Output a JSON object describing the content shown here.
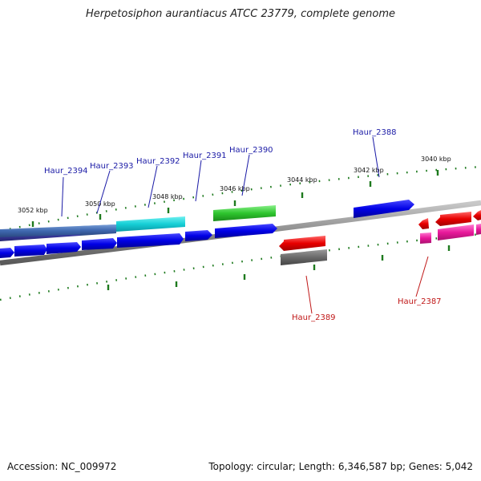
{
  "title": "Herpetosiphon aurantiacus ATCC 23779, complete genome",
  "accession": "Accession: NC_009972",
  "summary": "Topology: circular; Length: 6,346,587 bp; Genes: 5,042",
  "colors": {
    "label_forward": "#1a1aa6",
    "label_reverse": "#c01818",
    "tick": "#1e7a1e",
    "backbone": "#8a8a8a"
  },
  "kbp_labels": [
    "3052 kbp",
    "3050 kbp",
    "3048 kbp",
    "3046 kbp",
    "3044 kbp",
    "3042 kbp",
    "3040 kbp"
  ],
  "gene_labels": {
    "haur_2394": "Haur_2394",
    "haur_2393": "Haur_2393",
    "haur_2392": "Haur_2392",
    "haur_2391": "Haur_2391",
    "haur_2390": "Haur_2390",
    "haur_2388": "Haur_2388",
    "haur_2389": "Haur_2389",
    "haur_2387": "Haur_2387"
  }
}
